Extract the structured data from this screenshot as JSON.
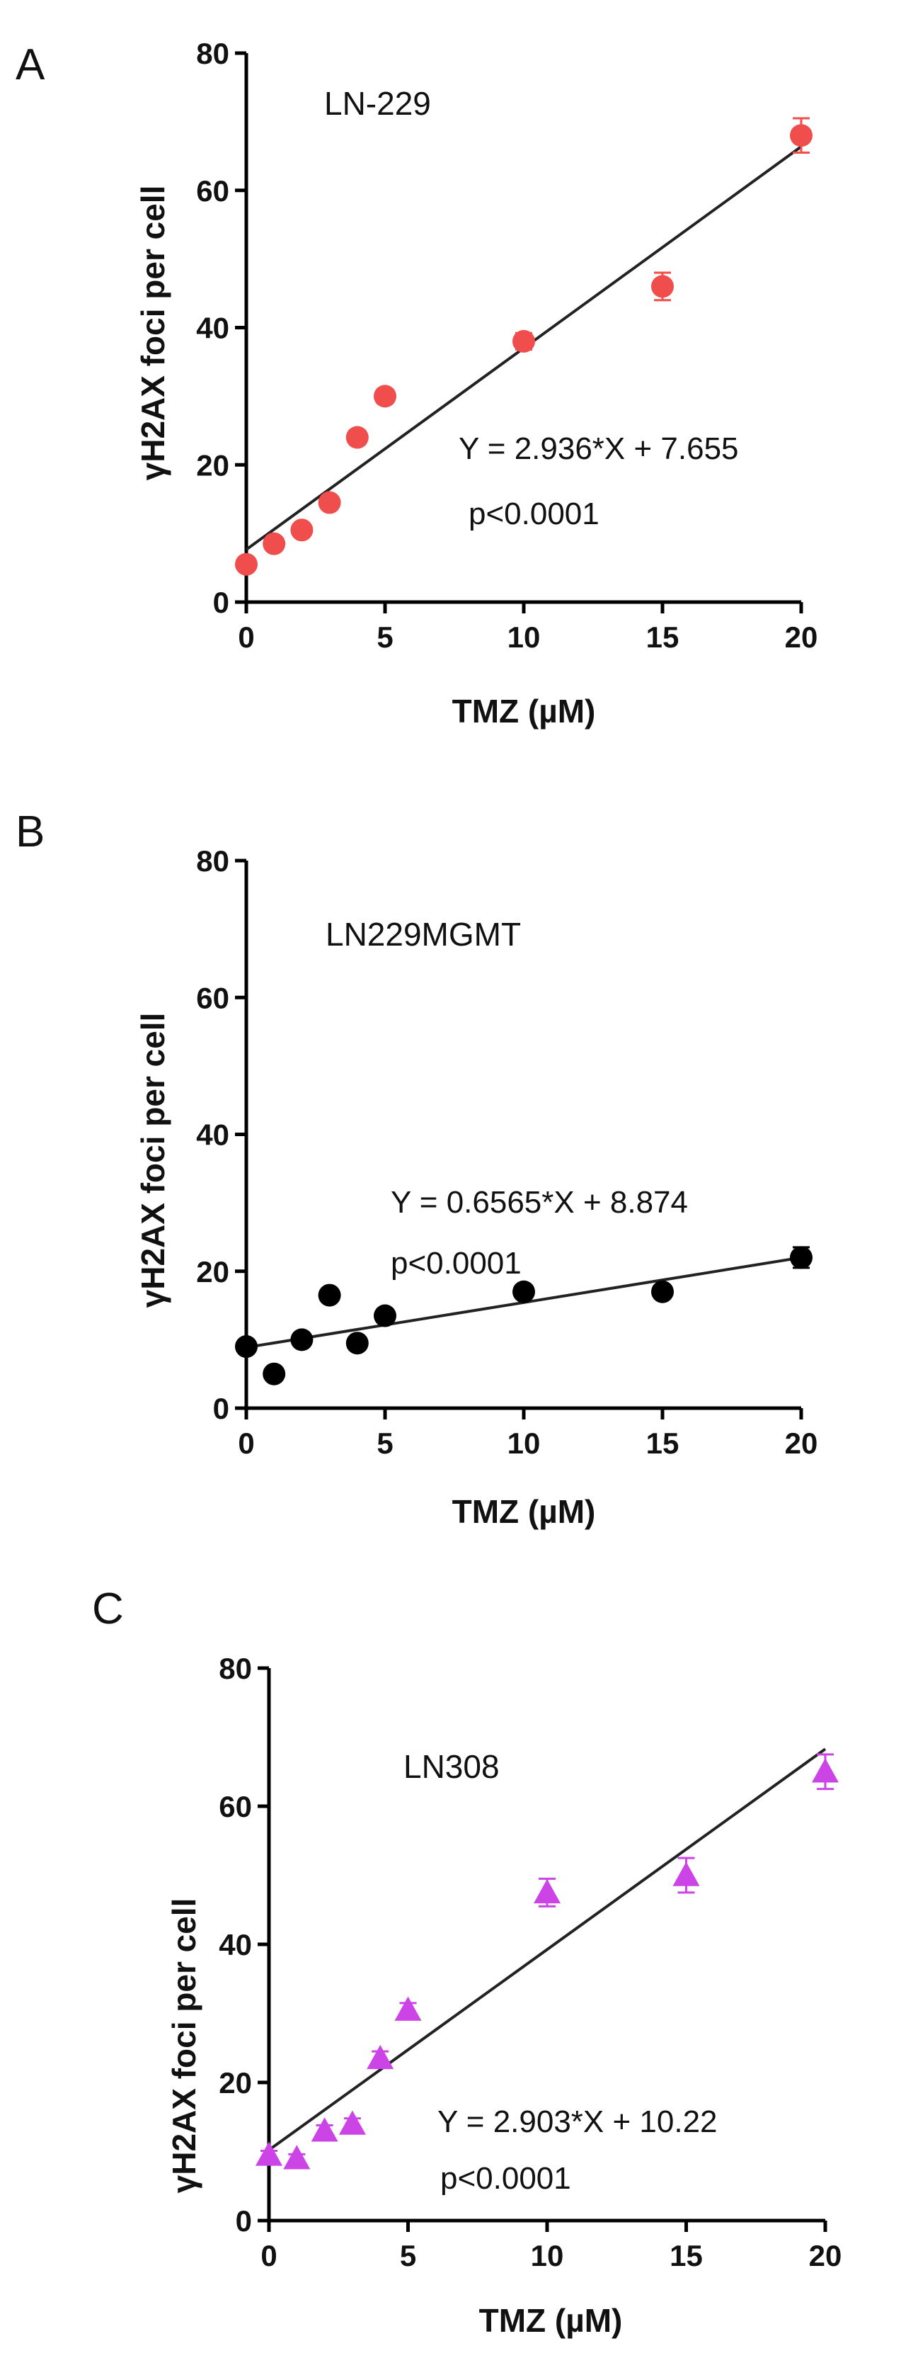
{
  "chart_data": [
    {
      "panel": "A",
      "type": "scatter",
      "annotation": "LN-229",
      "xlabel": "TMZ (µM)",
      "ylabel": "γH2AX foci per cell",
      "xlim": [
        0,
        20
      ],
      "ylim": [
        0,
        80
      ],
      "xticks": [
        0,
        5,
        10,
        15,
        20
      ],
      "yticks": [
        0,
        20,
        40,
        60,
        80
      ],
      "marker": "circle",
      "color": "#f04d4d",
      "points": [
        {
          "x": 0,
          "y": 5.5,
          "err": 0.6
        },
        {
          "x": 1,
          "y": 8.5,
          "err": 0.8
        },
        {
          "x": 2,
          "y": 10.5,
          "err": 0.8
        },
        {
          "x": 3,
          "y": 14.5,
          "err": 0.9
        },
        {
          "x": 4,
          "y": 24,
          "err": 1.0
        },
        {
          "x": 5,
          "y": 30,
          "err": 1.0
        },
        {
          "x": 10,
          "y": 38,
          "err": 1.2
        },
        {
          "x": 15,
          "y": 46,
          "err": 2.0
        },
        {
          "x": 20,
          "y": 68,
          "err": 2.5
        }
      ],
      "fit": {
        "slope": 2.936,
        "intercept": 7.655
      },
      "equation": "Y = 2.936*X + 7.655",
      "pvalue": "p<0.0001"
    },
    {
      "panel": "B",
      "type": "scatter",
      "annotation": "LN229MGMT",
      "xlabel": "TMZ (µM)",
      "ylabel": "γH2AX foci per cell",
      "xlim": [
        0,
        20
      ],
      "ylim": [
        0,
        80
      ],
      "xticks": [
        0,
        5,
        10,
        15,
        20
      ],
      "yticks": [
        0,
        20,
        40,
        60,
        80
      ],
      "marker": "circle",
      "color": "#000000",
      "points": [
        {
          "x": 0,
          "y": 9,
          "err": 0.6
        },
        {
          "x": 1,
          "y": 5,
          "err": 0.6
        },
        {
          "x": 2,
          "y": 10,
          "err": 0.6
        },
        {
          "x": 3,
          "y": 16.5,
          "err": 0.7
        },
        {
          "x": 4,
          "y": 9.5,
          "err": 0.6
        },
        {
          "x": 5,
          "y": 13.5,
          "err": 0.7
        },
        {
          "x": 10,
          "y": 17,
          "err": 0.8
        },
        {
          "x": 15,
          "y": 17,
          "err": 0.8
        },
        {
          "x": 20,
          "y": 22,
          "err": 1.5
        }
      ],
      "fit": {
        "slope": 0.6565,
        "intercept": 8.874
      },
      "equation": "Y = 0.6565*X + 8.874",
      "pvalue": "p<0.0001"
    },
    {
      "panel": "C",
      "type": "scatter",
      "annotation": "LN308",
      "xlabel": "TMZ (µM)",
      "ylabel": "γH2AX foci per cell",
      "xlim": [
        0,
        20
      ],
      "ylim": [
        0,
        80
      ],
      "xticks": [
        0,
        5,
        10,
        15,
        20
      ],
      "yticks": [
        0,
        20,
        40,
        60,
        80
      ],
      "marker": "triangle",
      "color": "#cc44e6",
      "points": [
        {
          "x": 0,
          "y": 9.5,
          "err": 0.6
        },
        {
          "x": 1,
          "y": 9,
          "err": 0.6
        },
        {
          "x": 2,
          "y": 13,
          "err": 0.8
        },
        {
          "x": 3,
          "y": 14,
          "err": 0.8
        },
        {
          "x": 4,
          "y": 23.5,
          "err": 1.0
        },
        {
          "x": 5,
          "y": 30.5,
          "err": 1.0
        },
        {
          "x": 10,
          "y": 47.5,
          "err": 2.0
        },
        {
          "x": 15,
          "y": 50,
          "err": 2.5
        },
        {
          "x": 20,
          "y": 65,
          "err": 2.5
        }
      ],
      "fit": {
        "slope": 2.903,
        "intercept": 10.22
      },
      "equation": "Y = 2.903*X + 10.22",
      "pvalue": "p<0.0001"
    }
  ]
}
